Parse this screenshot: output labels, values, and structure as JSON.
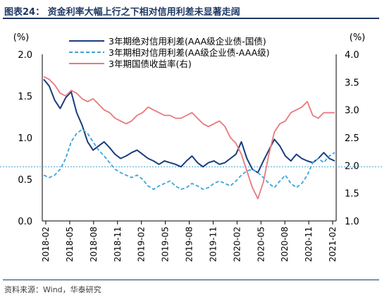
{
  "title": "图表24：  资金利率大幅上行之下相对信用利差未显著走阔",
  "source": "资料来源：Wind，华泰研究",
  "colors": {
    "absolute_spread": "#1a3d7c",
    "relative_spread": "#3fa4d8",
    "yield": "#e8797c",
    "reference_line": "#3fa4d8",
    "title": "#1f3864"
  },
  "chart_data": {
    "type": "line",
    "left_axis": {
      "unit": "(%)",
      "ylim": [
        0.0,
        2.0
      ],
      "ticks": [
        "0.0",
        "0.5",
        "1.0",
        "1.5",
        "2.0"
      ]
    },
    "right_axis": {
      "unit": "(%)",
      "ylim": [
        1.0,
        4.0
      ],
      "ticks": [
        "1.0",
        "1.5",
        "2.0",
        "2.5",
        "3.0",
        "3.5",
        "4.0"
      ]
    },
    "x_ticks": [
      "2018-02",
      "2018-05",
      "2018-08",
      "2018-11",
      "2019-02",
      "2019-05",
      "2019-08",
      "2019-11",
      "2020-02",
      "2020-05",
      "2020-08",
      "2020-11",
      "2021-02"
    ],
    "reference_line": {
      "axis": "left",
      "value": 0.65
    },
    "legend": {
      "placement": "top-center"
    },
    "series": [
      {
        "name": "3年期绝对信用利差(AAA级企业债-国债)",
        "axis": "left",
        "style": "solid",
        "values": [
          1.7,
          1.62,
          1.45,
          1.35,
          1.48,
          1.55,
          1.3,
          1.15,
          0.95,
          0.85,
          0.9,
          0.95,
          0.88,
          0.8,
          0.75,
          0.78,
          0.82,
          0.85,
          0.8,
          0.75,
          0.72,
          0.68,
          0.72,
          0.7,
          0.68,
          0.65,
          0.72,
          0.78,
          0.7,
          0.65,
          0.7,
          0.72,
          0.68,
          0.7,
          0.75,
          0.8,
          0.95,
          0.75,
          0.62,
          0.58,
          0.72,
          0.85,
          0.98,
          0.9,
          0.78,
          0.72,
          0.8,
          0.75,
          0.72,
          0.7,
          0.75,
          0.82,
          0.75,
          0.72
        ]
      },
      {
        "name": "3年期相对信用利差(AA级企业债-AAA级)",
        "axis": "left",
        "style": "dashed",
        "values": [
          0.55,
          0.52,
          0.55,
          0.62,
          0.75,
          0.95,
          1.05,
          1.1,
          1.05,
          0.95,
          0.85,
          0.78,
          0.7,
          0.62,
          0.58,
          0.55,
          0.52,
          0.55,
          0.5,
          0.42,
          0.38,
          0.42,
          0.45,
          0.48,
          0.42,
          0.38,
          0.4,
          0.45,
          0.42,
          0.38,
          0.4,
          0.45,
          0.48,
          0.45,
          0.42,
          0.48,
          0.55,
          0.6,
          0.62,
          0.58,
          0.52,
          0.45,
          0.4,
          0.48,
          0.55,
          0.45,
          0.4,
          0.45,
          0.55,
          0.7,
          0.75,
          0.7,
          0.78,
          0.82
        ]
      },
      {
        "name": "3年期国债收益率(右)",
        "axis": "right",
        "style": "solid",
        "values": [
          3.6,
          3.55,
          3.45,
          3.3,
          3.25,
          3.35,
          3.3,
          3.2,
          3.15,
          3.2,
          3.1,
          3.0,
          2.95,
          2.85,
          2.8,
          2.75,
          2.8,
          2.9,
          2.95,
          3.05,
          3.0,
          2.95,
          2.9,
          2.9,
          2.85,
          2.85,
          2.9,
          2.95,
          2.85,
          2.75,
          2.7,
          2.75,
          2.8,
          2.7,
          2.5,
          2.4,
          2.2,
          1.9,
          1.6,
          1.4,
          1.7,
          2.2,
          2.6,
          2.75,
          2.8,
          2.95,
          3.0,
          3.05,
          3.15,
          2.9,
          2.85,
          2.95,
          2.95,
          2.95
        ]
      }
    ]
  }
}
